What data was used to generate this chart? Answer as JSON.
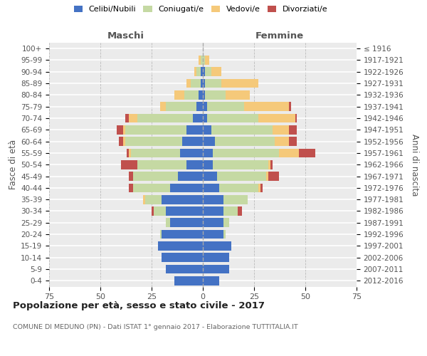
{
  "age_groups": [
    "100+",
    "95-99",
    "90-94",
    "85-89",
    "80-84",
    "75-79",
    "70-74",
    "65-69",
    "60-64",
    "55-59",
    "50-54",
    "45-49",
    "40-44",
    "35-39",
    "30-34",
    "25-29",
    "20-24",
    "15-19",
    "10-14",
    "5-9",
    "0-4"
  ],
  "birth_years": [
    "≤ 1916",
    "1917-1921",
    "1922-1926",
    "1927-1931",
    "1932-1936",
    "1937-1941",
    "1942-1946",
    "1947-1951",
    "1952-1956",
    "1957-1961",
    "1962-1966",
    "1967-1971",
    "1972-1976",
    "1977-1981",
    "1982-1986",
    "1987-1991",
    "1992-1996",
    "1997-2001",
    "2002-2006",
    "2007-2011",
    "2012-2016"
  ],
  "maschi": {
    "celibi": [
      0,
      0,
      1,
      1,
      2,
      3,
      5,
      8,
      10,
      11,
      8,
      12,
      16,
      20,
      18,
      16,
      20,
      22,
      20,
      18,
      14
    ],
    "coniugati": [
      0,
      1,
      2,
      5,
      7,
      15,
      27,
      30,
      28,
      24,
      24,
      22,
      18,
      8,
      6,
      2,
      1,
      0,
      0,
      0,
      0
    ],
    "vedovi": [
      0,
      1,
      1,
      2,
      5,
      3,
      4,
      1,
      1,
      1,
      0,
      0,
      0,
      1,
      0,
      0,
      0,
      0,
      0,
      0,
      0
    ],
    "divorziati": [
      0,
      0,
      0,
      0,
      0,
      0,
      2,
      3,
      2,
      1,
      8,
      2,
      2,
      0,
      1,
      0,
      0,
      0,
      0,
      0,
      0
    ]
  },
  "femmine": {
    "nubili": [
      0,
      0,
      1,
      1,
      1,
      2,
      2,
      4,
      6,
      5,
      5,
      7,
      8,
      10,
      10,
      10,
      10,
      14,
      13,
      13,
      8
    ],
    "coniugate": [
      0,
      1,
      3,
      8,
      10,
      18,
      25,
      30,
      29,
      32,
      27,
      24,
      19,
      12,
      7,
      3,
      1,
      0,
      0,
      0,
      0
    ],
    "vedove": [
      0,
      2,
      5,
      18,
      12,
      22,
      18,
      8,
      7,
      10,
      1,
      1,
      1,
      0,
      0,
      0,
      0,
      0,
      0,
      0,
      0
    ],
    "divorziate": [
      0,
      0,
      0,
      0,
      0,
      1,
      1,
      4,
      4,
      8,
      1,
      5,
      1,
      0,
      2,
      0,
      0,
      0,
      0,
      0,
      0
    ]
  },
  "colors": {
    "celibi": "#4472c4",
    "coniugati": "#c5d9a3",
    "vedovi": "#f5c97a",
    "divorziati": "#c0504d"
  },
  "xlim": 75,
  "title": "Popolazione per età, sesso e stato civile - 2017",
  "subtitle": "COMUNE DI MEDUNO (PN) - Dati ISTAT 1° gennaio 2017 - Elaborazione TUTTITALIA.IT",
  "ylabel": "Fasce di età",
  "ylabel_right": "Anni di nascita",
  "xlabel_left": "Maschi",
  "xlabel_right": "Femmine",
  "background_color": "#ebebeb"
}
